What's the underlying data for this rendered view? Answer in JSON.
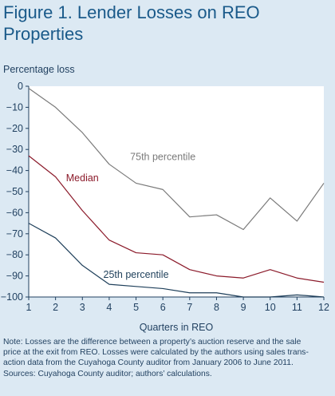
{
  "title": "Figure 1. Lender Losses on REO Properties",
  "chart_data": {
    "type": "line",
    "title": "Figure 1. Lender Losses on REO Properties",
    "ylabel": "Percentage loss",
    "xlabel": "Quarters in REO",
    "x": [
      1,
      2,
      3,
      4,
      5,
      6,
      7,
      8,
      9,
      10,
      11,
      12
    ],
    "xlim": [
      1,
      12
    ],
    "ylim": [
      -100,
      0
    ],
    "yticks": [
      0,
      -10,
      -20,
      -30,
      -40,
      -50,
      -60,
      -70,
      -80,
      -90,
      -100
    ],
    "grid": false,
    "series": [
      {
        "name": "75th percentile",
        "color": "#7a7a7a",
        "values": [
          -1,
          -10,
          -22,
          -37,
          -46,
          -49,
          -62,
          -61,
          -68,
          -53,
          -64,
          -46
        ]
      },
      {
        "name": "Median",
        "color": "#8b1a2a",
        "values": [
          -33,
          -43,
          -59,
          -73,
          -79,
          -80,
          -87,
          -90,
          -91,
          -87,
          -91,
          -93
        ]
      },
      {
        "name": "25th percentile",
        "color": "#1e3f5a",
        "values": [
          -65,
          -72,
          -85,
          -94,
          -95,
          -96,
          -98,
          -98,
          -100,
          -100,
          -99,
          -100
        ]
      }
    ]
  },
  "note": {
    "line1": "Note: Losses are the difference between a property’s auction reserve and the sale",
    "line2": "price at the exit from REO. Losses were calculated by the authors using sales trans-",
    "line3": "action data from the Cuyahoga County auditor from January 2006 to June 2011.",
    "line4": "Sources: Cuyahoga County auditor; authors’ calculations."
  }
}
